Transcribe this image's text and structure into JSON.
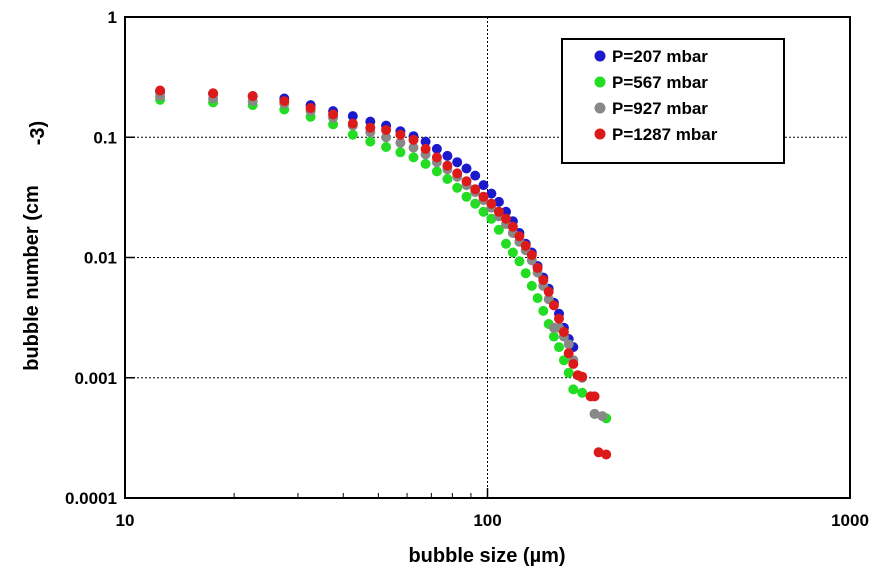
{
  "chart_data": {
    "type": "scatter",
    "xlabel": "bubble size (µm)",
    "ylabel": "bubble number (cm",
    "ylabel_exponent": "-3)",
    "xscale": "log",
    "yscale": "log",
    "xlim": [
      10,
      1000
    ],
    "ylim": [
      0.0001,
      1
    ],
    "x_ticks": [
      "10",
      "100",
      "1000"
    ],
    "y_ticks": [
      "0.0001",
      "0.001",
      "0.01",
      "0.1",
      "1"
    ],
    "grid": "major, dotted",
    "legend_position": "top-right",
    "series": [
      {
        "name": "P=207 mbar",
        "color": "#1a1acc",
        "points": [
          [
            12.5,
            0.24
          ],
          [
            17.5,
            0.23
          ],
          [
            22.5,
            0.22
          ],
          [
            27.5,
            0.21
          ],
          [
            32.5,
            0.185
          ],
          [
            37.5,
            0.165
          ],
          [
            42.5,
            0.15
          ],
          [
            47.5,
            0.135
          ],
          [
            52.5,
            0.125
          ],
          [
            57.5,
            0.112
          ],
          [
            62.5,
            0.102
          ],
          [
            67.5,
            0.092
          ],
          [
            72.5,
            0.08
          ],
          [
            77.5,
            0.07
          ],
          [
            82.5,
            0.062
          ],
          [
            87.5,
            0.055
          ],
          [
            92.5,
            0.048
          ],
          [
            97.5,
            0.04
          ],
          [
            102.5,
            0.034
          ],
          [
            107.5,
            0.029
          ],
          [
            112.5,
            0.024
          ],
          [
            117.5,
            0.02
          ],
          [
            122.5,
            0.016
          ],
          [
            127.5,
            0.013
          ],
          [
            132.5,
            0.011
          ],
          [
            137.5,
            0.0085
          ],
          [
            142.5,
            0.0068
          ],
          [
            147.5,
            0.0055
          ],
          [
            152.5,
            0.0042
          ],
          [
            157.5,
            0.0034
          ],
          [
            162.5,
            0.0026
          ],
          [
            167.5,
            0.0021
          ],
          [
            172.5,
            0.0018
          ]
        ]
      },
      {
        "name": "P=567 mbar",
        "color": "#22dd22",
        "points": [
          [
            12.5,
            0.205
          ],
          [
            17.5,
            0.195
          ],
          [
            22.5,
            0.185
          ],
          [
            27.5,
            0.17
          ],
          [
            32.5,
            0.148
          ],
          [
            37.5,
            0.128
          ],
          [
            42.5,
            0.105
          ],
          [
            47.5,
            0.092
          ],
          [
            52.5,
            0.083
          ],
          [
            57.5,
            0.075
          ],
          [
            62.5,
            0.068
          ],
          [
            67.5,
            0.06
          ],
          [
            72.5,
            0.052
          ],
          [
            77.5,
            0.045
          ],
          [
            82.5,
            0.038
          ],
          [
            87.5,
            0.032
          ],
          [
            92.5,
            0.028
          ],
          [
            97.5,
            0.024
          ],
          [
            102.5,
            0.021
          ],
          [
            107.5,
            0.017
          ],
          [
            112.5,
            0.013
          ],
          [
            117.5,
            0.011
          ],
          [
            122.5,
            0.0093
          ],
          [
            127.5,
            0.0074
          ],
          [
            132.5,
            0.0058
          ],
          [
            137.5,
            0.0046
          ],
          [
            142.5,
            0.0036
          ],
          [
            147.5,
            0.0028
          ],
          [
            152.5,
            0.0022
          ],
          [
            157.5,
            0.0018
          ],
          [
            162.5,
            0.0014
          ],
          [
            167.5,
            0.0011
          ],
          [
            172.5,
            0.0008
          ],
          [
            182.5,
            0.00075
          ],
          [
            197.5,
            0.0005
          ],
          [
            212.5,
            0.00046
          ]
        ]
      },
      {
        "name": "P=927 mbar",
        "color": "#888888",
        "points": [
          [
            12.5,
            0.22
          ],
          [
            17.5,
            0.21
          ],
          [
            22.5,
            0.2
          ],
          [
            27.5,
            0.19
          ],
          [
            32.5,
            0.165
          ],
          [
            37.5,
            0.145
          ],
          [
            42.5,
            0.125
          ],
          [
            47.5,
            0.11
          ],
          [
            52.5,
            0.1
          ],
          [
            57.5,
            0.09
          ],
          [
            62.5,
            0.082
          ],
          [
            67.5,
            0.072
          ],
          [
            72.5,
            0.062
          ],
          [
            77.5,
            0.054
          ],
          [
            82.5,
            0.047
          ],
          [
            87.5,
            0.04
          ],
          [
            92.5,
            0.035
          ],
          [
            97.5,
            0.03
          ],
          [
            102.5,
            0.026
          ],
          [
            107.5,
            0.022
          ],
          [
            112.5,
            0.019
          ],
          [
            117.5,
            0.016
          ],
          [
            122.5,
            0.0135
          ],
          [
            127.5,
            0.0115
          ],
          [
            132.5,
            0.0095
          ],
          [
            137.5,
            0.0075
          ],
          [
            142.5,
            0.0058
          ],
          [
            147.5,
            0.0045
          ],
          [
            152.5,
            0.0026
          ],
          [
            157.5,
            0.0026
          ],
          [
            162.5,
            0.0022
          ],
          [
            167.5,
            0.0019
          ],
          [
            172.5,
            0.0014
          ],
          [
            182.5,
            0.001
          ],
          [
            197.5,
            0.0005
          ],
          [
            207.5,
            0.00048
          ]
        ]
      },
      {
        "name": "P=1287 mbar",
        "color": "#dd1a1a",
        "points": [
          [
            12.5,
            0.245
          ],
          [
            17.5,
            0.232
          ],
          [
            22.5,
            0.22
          ],
          [
            27.5,
            0.2
          ],
          [
            32.5,
            0.175
          ],
          [
            37.5,
            0.155
          ],
          [
            42.5,
            0.13
          ],
          [
            47.5,
            0.12
          ],
          [
            52.5,
            0.115
          ],
          [
            57.5,
            0.105
          ],
          [
            62.5,
            0.095
          ],
          [
            67.5,
            0.08
          ],
          [
            72.5,
            0.068
          ],
          [
            77.5,
            0.058
          ],
          [
            82.5,
            0.05
          ],
          [
            87.5,
            0.043
          ],
          [
            92.5,
            0.037
          ],
          [
            97.5,
            0.032
          ],
          [
            102.5,
            0.028
          ],
          [
            107.5,
            0.024
          ],
          [
            112.5,
            0.021
          ],
          [
            117.5,
            0.018
          ],
          [
            122.5,
            0.015
          ],
          [
            127.5,
            0.0125
          ],
          [
            132.5,
            0.0105
          ],
          [
            137.5,
            0.0082
          ],
          [
            142.5,
            0.0065
          ],
          [
            147.5,
            0.0052
          ],
          [
            152.5,
            0.004
          ],
          [
            157.5,
            0.0031
          ],
          [
            162.5,
            0.0024
          ],
          [
            167.5,
            0.0016
          ],
          [
            172.5,
            0.0013
          ],
          [
            177.5,
            0.00105
          ],
          [
            182.5,
            0.00102
          ],
          [
            192.5,
            0.0007
          ],
          [
            197.5,
            0.0007
          ],
          [
            202.5,
            0.00024
          ],
          [
            212.5,
            0.00023
          ]
        ]
      }
    ]
  }
}
